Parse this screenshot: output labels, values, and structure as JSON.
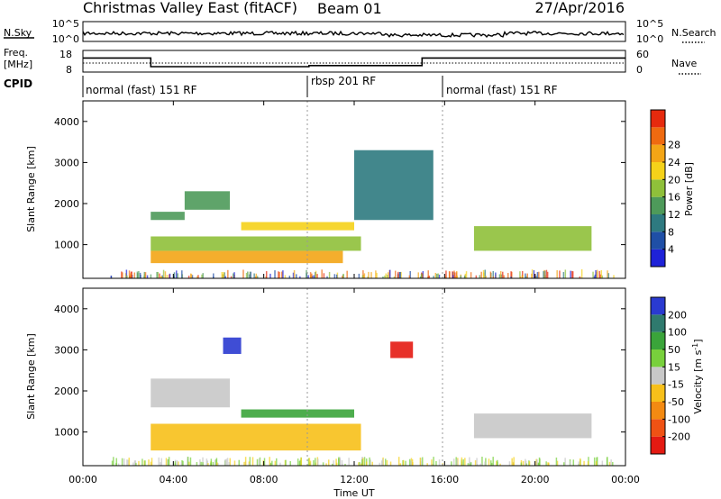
{
  "header": {
    "title": "Christmas Valley East (fitACF)",
    "beam": "Beam 01",
    "date": "27/Apr/2016"
  },
  "noise_panel": {
    "left_label": "N.Sky",
    "right_label": "N.Search",
    "left_ticks": [
      "10^5",
      "10^0"
    ],
    "right_ticks": [
      "10^5",
      "10^0"
    ]
  },
  "freq_panel": {
    "left_label_1": "Freq.",
    "left_label_2": "[MHz]",
    "right_label": "Nave",
    "left_ticks": [
      "18",
      "8"
    ],
    "right_ticks": [
      "60",
      "0"
    ]
  },
  "cpid": {
    "label": "CPID",
    "modes": [
      {
        "text": "normal (fast) 151 RF",
        "start_hour": 0
      },
      {
        "text": "rbsp 201 RF",
        "start_hour": 10
      },
      {
        "text": "normal (fast) 151 RF",
        "start_hour": 16
      }
    ]
  },
  "power_panel": {
    "ylabel": "Slant Range [km]",
    "yticks": [
      "1000",
      "2000",
      "3000",
      "4000"
    ],
    "colorbar_label": "Power [dB]",
    "colorbar_ticks": [
      "4",
      "8",
      "12",
      "16",
      "20",
      "24",
      "28"
    ],
    "colorbar_colors": [
      "#1e22d8",
      "#1f4fa6",
      "#2e7a80",
      "#4e9a5a",
      "#8fc03a",
      "#f5d21a",
      "#f3a516",
      "#ef6a10",
      "#e62a0e"
    ]
  },
  "velocity_panel": {
    "ylabel": "Slant Range [km]",
    "yticks": [
      "1000",
      "2000",
      "3000",
      "4000"
    ],
    "colorbar_label": "Velocity [m s^-1]",
    "colorbar_ticks": [
      "200",
      "100",
      "50",
      "15",
      "-15",
      "-50",
      "-100",
      "-200"
    ],
    "colorbar_colors": [
      "#2a3ad0",
      "#2f7a6e",
      "#3aa43a",
      "#78d03c",
      "#c8c8c8",
      "#f7c01a",
      "#f38a12",
      "#ef5214",
      "#e41a12"
    ]
  },
  "xaxis": {
    "label": "Time UT",
    "ticks": [
      "00:00",
      "04:00",
      "08:00",
      "12:00",
      "16:00",
      "20:00",
      "00:00"
    ]
  },
  "chart_data": {
    "type": "heatmap",
    "title": "Christmas Valley East (fitACF)",
    "xlabel": "Time UT",
    "ylabel": "Slant Range [km]",
    "xlim_hours": [
      0,
      24
    ],
    "ylim_km": [
      180,
      4500
    ],
    "frequency_mhz_steps": [
      {
        "start": 0,
        "end": 3,
        "value": 14.5
      },
      {
        "start": 3,
        "end": 10,
        "value": 10.5
      },
      {
        "start": 10,
        "end": 15,
        "value": 11
      },
      {
        "start": 15,
        "end": 24,
        "value": 14.5
      }
    ],
    "power_regions": [
      {
        "t0": 3.0,
        "t1": 11.5,
        "r0": 550,
        "r1": 850,
        "power_db": 24
      },
      {
        "t0": 3.0,
        "t1": 12.3,
        "r0": 850,
        "r1": 1200,
        "power_db": 16
      },
      {
        "t0": 3.0,
        "t1": 4.5,
        "r0": 1600,
        "r1": 1800,
        "power_db": 12
      },
      {
        "t0": 4.5,
        "t1": 6.5,
        "r0": 1850,
        "r1": 2300,
        "power_db": 10
      },
      {
        "t0": 7.0,
        "t1": 12.0,
        "r0": 1350,
        "r1": 1550,
        "power_db": 18
      },
      {
        "t0": 12.0,
        "t1": 15.5,
        "r0": 1600,
        "r1": 3300,
        "power_db": 8
      },
      {
        "t0": 17.3,
        "t1": 22.5,
        "r0": 850,
        "r1": 1450,
        "power_db": 16
      }
    ],
    "velocity_regions": [
      {
        "t0": 3.0,
        "t1": 12.3,
        "r0": 550,
        "r1": 1200,
        "velocity_ms": -20
      },
      {
        "t0": 3.0,
        "t1": 6.5,
        "r0": 1600,
        "r1": 2300,
        "velocity_ms": 0
      },
      {
        "t0": 6.2,
        "t1": 7.0,
        "r0": 2900,
        "r1": 3300,
        "velocity_ms": 200
      },
      {
        "t0": 7.0,
        "t1": 12.0,
        "r0": 1350,
        "r1": 1550,
        "velocity_ms": 60
      },
      {
        "t0": 13.6,
        "t1": 14.6,
        "r0": 2800,
        "r1": 3200,
        "velocity_ms": -220
      },
      {
        "t0": 17.3,
        "t1": 22.5,
        "r0": 850,
        "r1": 1450,
        "velocity_ms": 0
      }
    ]
  }
}
